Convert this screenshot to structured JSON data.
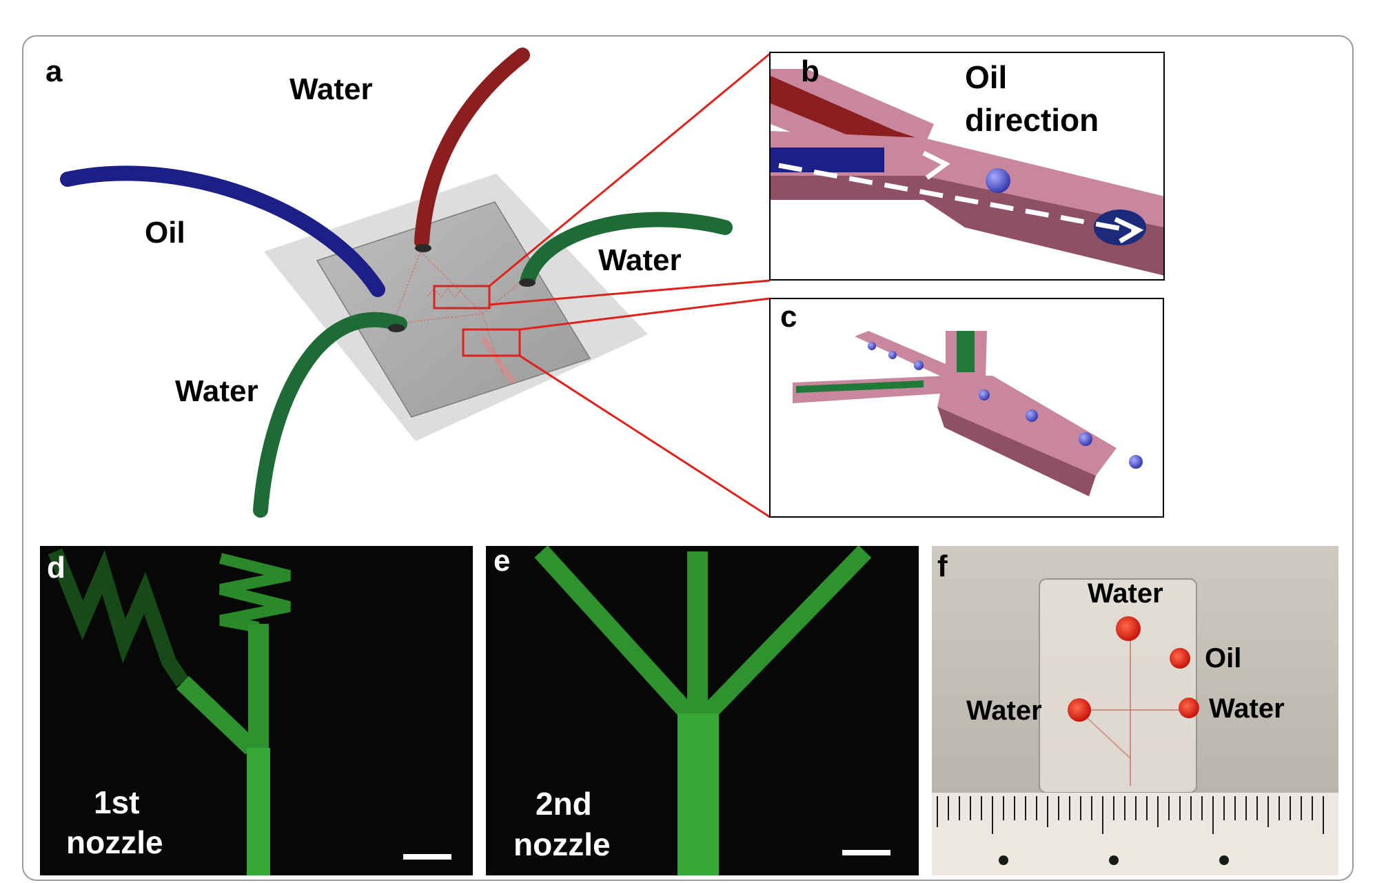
{
  "figure": {
    "panel_a": {
      "letter": "a",
      "labels": {
        "water_top": "Water",
        "oil": "Oil",
        "water_right": "Water",
        "water_bottom": "Water"
      }
    },
    "panel_b": {
      "letter": "b",
      "title_line1": "Oil",
      "title_line2": "direction"
    },
    "panel_c": {
      "letter": "c"
    },
    "panel_d": {
      "letter": "d",
      "caption_line1": "1st",
      "caption_line2": "nozzle"
    },
    "panel_e": {
      "letter": "e",
      "caption_line1": "2nd",
      "caption_line2": "nozzle"
    },
    "panel_f": {
      "letter": "f",
      "labels": {
        "water_top": "Water",
        "oil": "Oil",
        "water_left": "Water",
        "water_right": "Water"
      }
    },
    "colors": {
      "oil_tube": "#1c1f86",
      "water_tube_red": "#8b1e1e",
      "water_tube_green": "#1f6b36",
      "channel_pink": "#c9879e",
      "highlight_red": "#e0201b",
      "fluor_green": "#2e8b2e",
      "droplet_blue": "#4a4fd0"
    }
  }
}
